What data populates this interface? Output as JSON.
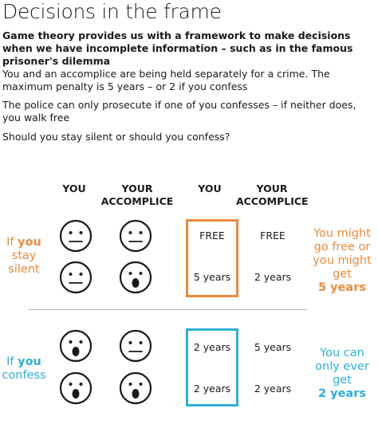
{
  "title": "Decisions in the frame",
  "intro": "Game theory provides us with a framework to make decisions when we have incomplete information – such as in the famous prisoner's dilemma",
  "paragraphs": [
    "You and an accomplice are being held separately for a crime. The maximum penalty is 5 years – or 2 if you confess",
    "The police can only prosecute if one of you confesses – if neither does, you walk free",
    "Should you stay silent or should you confess?"
  ],
  "headers": {
    "you_left": "YOU",
    "accomplice_left": "YOUR ACCOMPLICE",
    "you_right": "YOU",
    "accomplice_right": "YOUR ACCOMPLICE"
  },
  "rows": {
    "silent": {
      "label_prefix": "If ",
      "label_emph": "you",
      "label_suffix": "stay silent",
      "outcomes": [
        {
          "you": "FREE",
          "accomplice": "FREE"
        },
        {
          "you": "5 years",
          "accomplice": "2 years"
        }
      ],
      "summary_text": "You might go free or you might get",
      "summary_emph": "5 years",
      "color": "#ea8a3b"
    },
    "confess": {
      "label_prefix": "If ",
      "label_emph": "you",
      "label_suffix": "confess",
      "outcomes": [
        {
          "you": "2 years",
          "accomplice": "5 years"
        },
        {
          "you": "2 years",
          "accomplice": "2 years"
        }
      ],
      "summary_text": "You can only ever get",
      "summary_emph": "2 years",
      "color": "#2eaed8"
    }
  },
  "faces": {
    "neutral": "neutral-face-icon",
    "shocked": "shocked-face-icon"
  }
}
